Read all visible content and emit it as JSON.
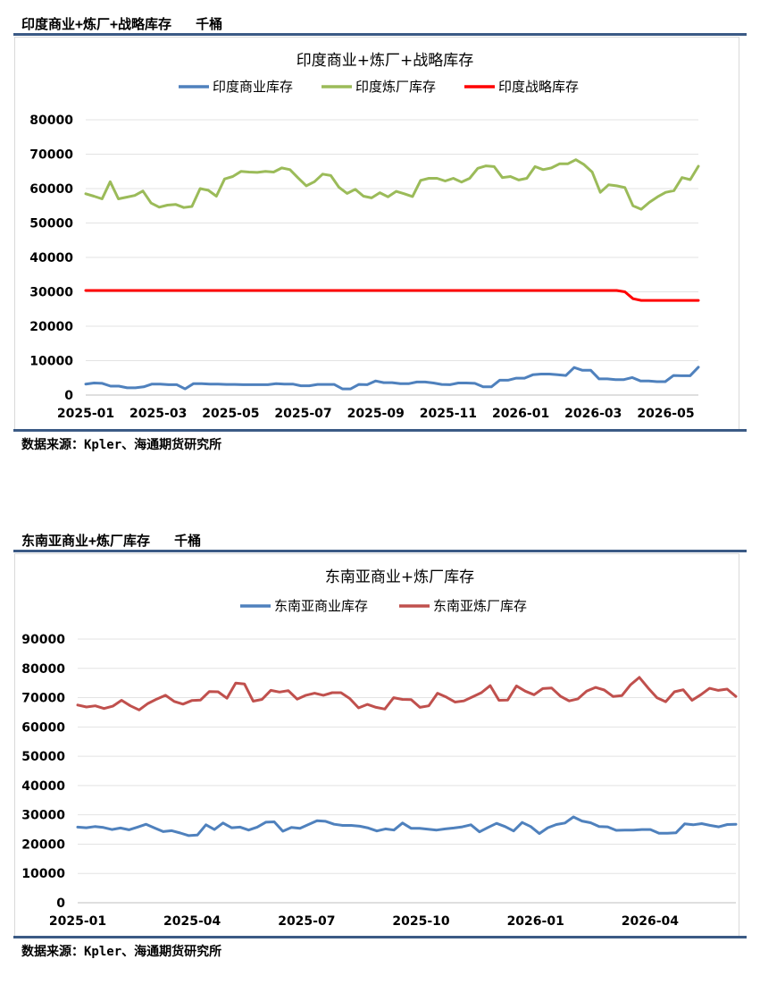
{
  "panels": [
    {
      "header": "印度商业+炼厂+战略库存   千桶",
      "source": "数据来源：Kpler、海通期货研究所"
    },
    {
      "header": "东南亚商业+炼厂库存   千桶",
      "source": "数据来源：Kpler、海通期货研究所"
    }
  ],
  "chart_data": [
    {
      "type": "line",
      "title": "印度商业+炼厂+战略库存",
      "legend_position": "top",
      "grid": true,
      "ylim": [
        0,
        80000
      ],
      "y_ticks": [
        "0",
        "10000",
        "20000",
        "30000",
        "40000",
        "50000",
        "60000",
        "70000",
        "80000"
      ],
      "x_ticks": [
        "2025-01",
        "2025-03",
        "2025-05",
        "2025-07",
        "2025-09",
        "2025-11",
        "2026-01",
        "2026-03",
        "2026-05"
      ],
      "series": [
        {
          "name": "印度商业库存",
          "color": "#4f81bd",
          "values": [
            3200,
            3500,
            3400,
            2600,
            2600,
            2100,
            2100,
            2400,
            3200,
            3200,
            3000,
            3000,
            1800,
            3300,
            3300,
            3200,
            3200,
            3100,
            3100,
            3000,
            3000,
            3000,
            3000,
            3300,
            3200,
            3200,
            2700,
            2700,
            3100,
            3100,
            3100,
            1800,
            1800,
            3100,
            3000,
            4100,
            3600,
            3600,
            3300,
            3300,
            3800,
            3800,
            3500,
            3100,
            3000,
            3500,
            3500,
            3400,
            2400,
            2400,
            4300,
            4300,
            4900,
            4900,
            5900,
            6100,
            6100,
            5900,
            5700,
            8000,
            7200,
            7200,
            4700,
            4700,
            4500,
            4500,
            5100,
            4100,
            4100,
            3900,
            3900,
            5700,
            5600,
            5600,
            8100
          ]
        },
        {
          "name": "印度炼厂库存",
          "color": "#9bbb59",
          "values": [
            58500,
            57800,
            57000,
            62000,
            57000,
            57500,
            58000,
            59300,
            55800,
            54600,
            55200,
            55400,
            54500,
            54800,
            60000,
            59500,
            57800,
            62800,
            63500,
            65000,
            64800,
            64700,
            65000,
            64800,
            66000,
            65500,
            63100,
            60800,
            62000,
            64200,
            63800,
            60400,
            58600,
            59800,
            57800,
            57300,
            58800,
            57600,
            59200,
            58500,
            57700,
            62400,
            63000,
            63000,
            62200,
            63000,
            61900,
            63000,
            65900,
            66600,
            66400,
            63200,
            63500,
            62500,
            63000,
            66400,
            65500,
            66000,
            67200,
            67200,
            68400,
            67000,
            64800,
            58900,
            61100,
            60800,
            60300,
            55000,
            54000,
            56000,
            57600,
            58900,
            59400,
            63200,
            62600,
            66500
          ]
        },
        {
          "name": "印度战略库存",
          "color": "#ff0000",
          "values": [
            30400,
            30400,
            30400,
            30400,
            30400,
            30400,
            30400,
            30400,
            30400,
            30400,
            30400,
            30400,
            30400,
            30400,
            30400,
            30400,
            30400,
            30400,
            30400,
            30400,
            30400,
            30400,
            30400,
            30400,
            30400,
            30400,
            30400,
            30400,
            30400,
            30400,
            30400,
            30400,
            30400,
            30400,
            30400,
            30400,
            30400,
            30400,
            30400,
            30400,
            30400,
            30400,
            30400,
            30400,
            30400,
            30400,
            30400,
            30400,
            30400,
            30400,
            30400,
            30400,
            30400,
            30400,
            30400,
            30400,
            30400,
            30400,
            30400,
            30400,
            30400,
            30400,
            30400,
            30400,
            30400,
            30400,
            30000,
            28000,
            27500,
            27500,
            27500,
            27500,
            27500,
            27500,
            27500,
            27500
          ]
        }
      ]
    },
    {
      "type": "line",
      "title": "东南亚商业+炼厂库存",
      "legend_position": "top",
      "grid": true,
      "ylim": [
        0,
        90000
      ],
      "y_ticks": [
        "0",
        "10000",
        "20000",
        "30000",
        "40000",
        "50000",
        "60000",
        "70000",
        "80000",
        "90000"
      ],
      "x_ticks": [
        "2025-01",
        "2025-04",
        "2025-07",
        "2025-10",
        "2026-01",
        "2026-04"
      ],
      "series": [
        {
          "name": "东南亚商业库存",
          "color": "#4f81bd",
          "values": [
            25800,
            25600,
            26000,
            25700,
            25000,
            25500,
            24900,
            25800,
            26800,
            25500,
            24300,
            24600,
            23800,
            22900,
            23100,
            26600,
            25000,
            27200,
            25600,
            25800,
            24800,
            25800,
            27500,
            27600,
            24400,
            25700,
            25400,
            26700,
            28000,
            27800,
            26800,
            26400,
            26400,
            26100,
            25500,
            24500,
            25200,
            24800,
            27200,
            25400,
            25400,
            25100,
            24800,
            25200,
            25500,
            25900,
            26600,
            24200,
            25700,
            27100,
            26000,
            24500,
            27400,
            26000,
            23600,
            25600,
            26700,
            27200,
            29300,
            27900,
            27300,
            26000,
            25900,
            24700,
            24800,
            24800,
            25000,
            25000,
            23700,
            23700,
            23900,
            26900,
            26600,
            27000,
            26400,
            25900,
            26700,
            26800
          ]
        },
        {
          "name": "东南亚炼厂库存",
          "color": "#c0504d",
          "values": [
            67500,
            66800,
            67200,
            66300,
            67100,
            69100,
            67200,
            65800,
            68000,
            69500,
            70800,
            68700,
            67800,
            69000,
            69200,
            72100,
            72000,
            69800,
            75000,
            74700,
            68800,
            69400,
            72500,
            71900,
            72400,
            69500,
            70800,
            71500,
            70800,
            71700,
            71700,
            69700,
            66500,
            67700,
            66700,
            66100,
            70000,
            69400,
            69300,
            66700,
            67200,
            71500,
            70200,
            68500,
            68900,
            70300,
            71700,
            74100,
            69100,
            69200,
            74000,
            72200,
            71000,
            73100,
            73300,
            70500,
            68900,
            69600,
            72200,
            73500,
            72600,
            70400,
            70700,
            74400,
            76900,
            73300,
            70000,
            68600,
            72000,
            72700,
            69100,
            71000,
            73200,
            72500,
            72900,
            70400
          ]
        }
      ]
    }
  ]
}
